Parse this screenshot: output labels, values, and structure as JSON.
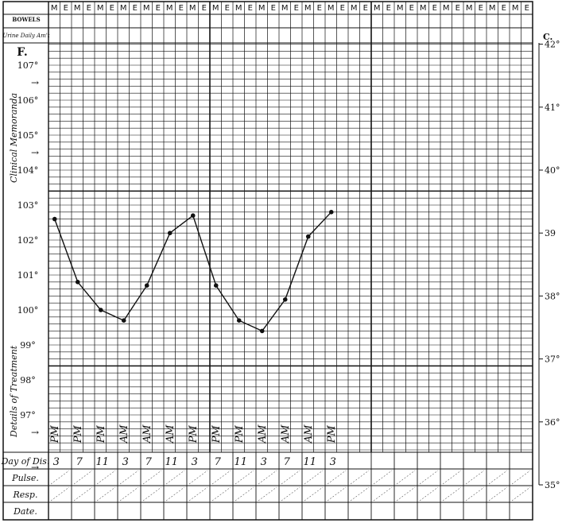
{
  "header": {
    "bowels_label": "BOWELS",
    "urine_label": "Urine Daily Am't",
    "shift_labels": [
      "M",
      "E"
    ],
    "fahrenheit_unit": "F.",
    "celsius_unit": "C."
  },
  "side_labels": {
    "clinical": "Clinical Memoranda",
    "treatment": "Details of Treatment"
  },
  "rows": {
    "day": "Day of Dis.",
    "pulse": "Pulse.",
    "resp": "Resp.",
    "date": "Date."
  },
  "chart_data": {
    "type": "line",
    "x": [
      "3 PM",
      "7 PM",
      "11 PM",
      "3 AM",
      "7 AM",
      "11 AM",
      "3 PM",
      "7 PM",
      "11 PM",
      "3 AM",
      "7 AM",
      "11 AM",
      "3 PM"
    ],
    "time_notes": [
      "PM",
      "PM",
      "PM",
      "AM",
      "AM",
      "AM",
      "PM",
      "PM",
      "PM",
      "AM",
      "AM",
      "AM",
      "PM"
    ],
    "hour_notes": [
      "3",
      "7",
      "11",
      "3",
      "7",
      "11",
      "3",
      "7",
      "11",
      "3",
      "7",
      "11",
      "3"
    ],
    "values": [
      102.6,
      100.8,
      100.0,
      99.7,
      100.7,
      102.2,
      102.7,
      100.7,
      99.7,
      99.4,
      100.3,
      102.1,
      102.8
    ],
    "ylabel": "F.",
    "ylim": [
      95.9,
      107.6
    ],
    "y_ticks": [
      "107°",
      "106°",
      "105°",
      "104°",
      "103°",
      "102°",
      "101°",
      "100°",
      "99°",
      "98°",
      "97°"
    ],
    "y2label": "C.",
    "y2_ticks": [
      "42°",
      "41°",
      "40°",
      "39",
      "38°",
      "37°",
      "36°",
      "35°"
    ],
    "grid": true,
    "line_color": "#111111"
  }
}
